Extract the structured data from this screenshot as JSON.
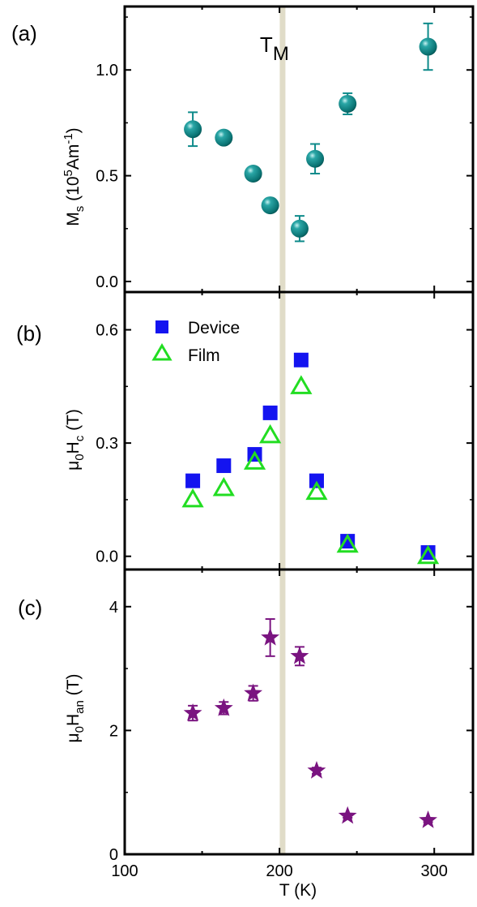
{
  "chart_data": {
    "type": "scatter",
    "x_axis": {
      "label_main": "T (K)",
      "ticks": [
        100,
        200,
        300
      ],
      "tick_labels": [
        "100",
        "200",
        "300"
      ],
      "xlim": [
        100,
        325
      ]
    },
    "reference_line": {
      "x": 202,
      "label_main": "T",
      "label_sub": "M",
      "color": "#e0dcc8"
    },
    "panels": [
      {
        "id": "a",
        "panel_label": "(a)",
        "ylabel_main": "M",
        "ylabel_sub": "s",
        "ylabel_rest": " (10",
        "ylabel_sup": "5",
        "ylabel_unit": "Am",
        "ylabel_unit_sup": "-1",
        "ylabel_close": ")",
        "ylim": [
          -0.05,
          1.3
        ],
        "yticks": [
          0.0,
          0.5,
          1.0
        ],
        "ytick_labels": [
          "0.0",
          "0.5",
          "1.0"
        ],
        "series": [
          {
            "marker": "sphere",
            "color": "#0d8a8a",
            "points": [
              {
                "x": 144,
                "y": 0.72,
                "err": 0.08
              },
              {
                "x": 164,
                "y": 0.68,
                "err": 0.03
              },
              {
                "x": 183,
                "y": 0.51,
                "err": 0.03
              },
              {
                "x": 194,
                "y": 0.36,
                "err": 0.02
              },
              {
                "x": 213,
                "y": 0.25,
                "err": 0.06
              },
              {
                "x": 223,
                "y": 0.58,
                "err": 0.07
              },
              {
                "x": 244,
                "y": 0.84,
                "err": 0.05
              },
              {
                "x": 296,
                "y": 1.11,
                "err": 0.11
              }
            ]
          }
        ]
      },
      {
        "id": "b",
        "panel_label": "(b)",
        "ylabel_main": "μ",
        "ylabel_sub": "0",
        "ylabel_rest": "H",
        "ylabel_sub2": "c",
        "ylabel_unit": " (T)",
        "ylim": [
          -0.035,
          0.7
        ],
        "yticks": [
          0.0,
          0.3,
          0.6
        ],
        "ytick_labels": [
          "0.0",
          "0.3",
          "0.6"
        ],
        "legend_position": "top-left",
        "series": [
          {
            "name": "Device",
            "marker": "square",
            "color": "#1414f0",
            "points": [
              {
                "x": 144,
                "y": 0.2
              },
              {
                "x": 164,
                "y": 0.24
              },
              {
                "x": 184,
                "y": 0.27
              },
              {
                "x": 194,
                "y": 0.38
              },
              {
                "x": 214,
                "y": 0.52
              },
              {
                "x": 224,
                "y": 0.2
              },
              {
                "x": 244,
                "y": 0.04
              },
              {
                "x": 296,
                "y": 0.01
              }
            ]
          },
          {
            "name": "Film",
            "marker": "triangle-open",
            "color": "#22dd22",
            "points": [
              {
                "x": 144,
                "y": 0.15
              },
              {
                "x": 164,
                "y": 0.18
              },
              {
                "x": 184,
                "y": 0.25
              },
              {
                "x": 194,
                "y": 0.32
              },
              {
                "x": 214,
                "y": 0.45
              },
              {
                "x": 224,
                "y": 0.17
              },
              {
                "x": 244,
                "y": 0.03
              },
              {
                "x": 296,
                "y": 0.0
              }
            ]
          }
        ]
      },
      {
        "id": "c",
        "panel_label": "(c)",
        "ylabel_main": "μ",
        "ylabel_sub": "0",
        "ylabel_rest": "H",
        "ylabel_sub2": "an",
        "ylabel_unit": " (T)",
        "ylim": [
          0,
          4.6
        ],
        "yticks": [
          0,
          2,
          4
        ],
        "ytick_labels": [
          "0",
          "2",
          "4"
        ],
        "series": [
          {
            "marker": "star",
            "color": "#7a1480",
            "points": [
              {
                "x": 144,
                "y": 2.28,
                "err": 0.12
              },
              {
                "x": 164,
                "y": 2.36,
                "err": 0.1
              },
              {
                "x": 183,
                "y": 2.6,
                "err": 0.12
              },
              {
                "x": 194,
                "y": 3.5,
                "err": 0.3
              },
              {
                "x": 213,
                "y": 3.2,
                "err": 0.15
              },
              {
                "x": 224,
                "y": 1.35,
                "err": 0.05
              },
              {
                "x": 244,
                "y": 0.62,
                "err": 0.03
              },
              {
                "x": 296,
                "y": 0.55,
                "err": 0.03
              }
            ]
          }
        ]
      }
    ]
  }
}
